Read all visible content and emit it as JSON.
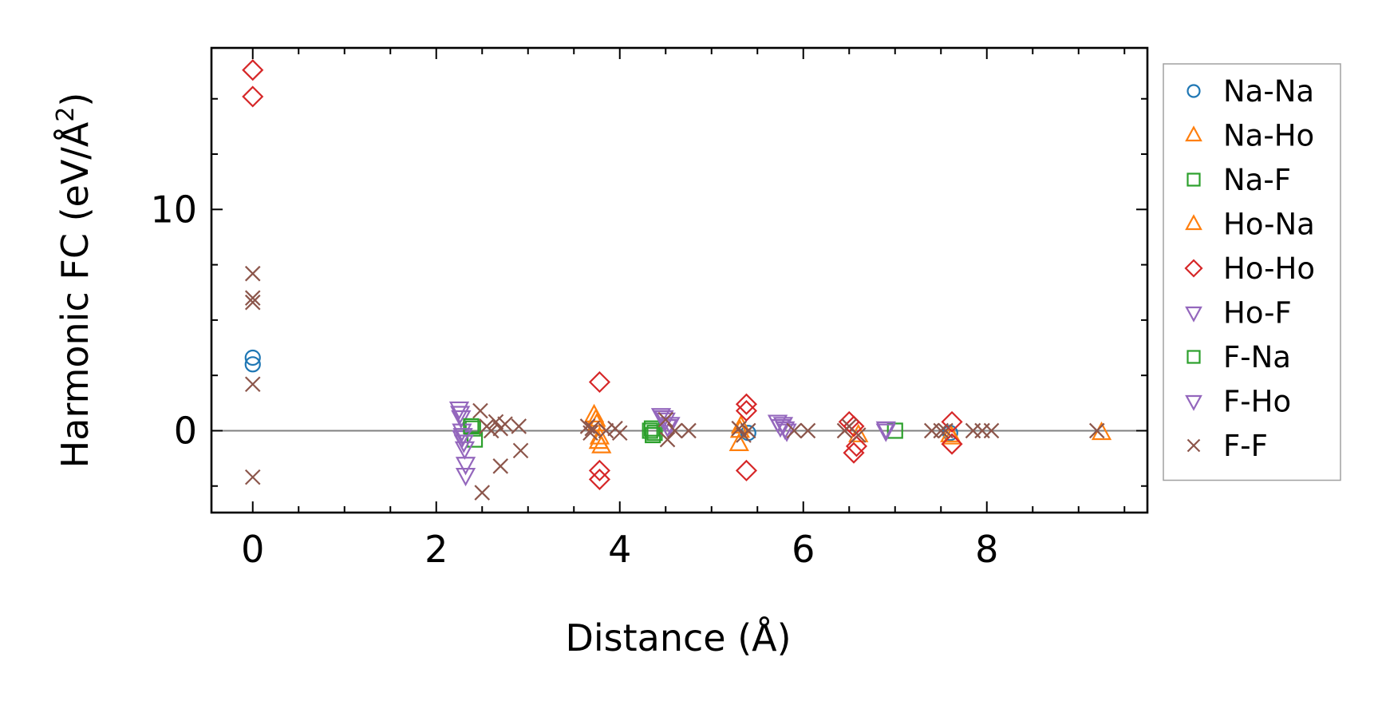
{
  "chart_data": {
    "type": "scatter",
    "xlabel": "Distance (Å)",
    "ylabel": "Harmonic FC (eV/Å",
    "ylabel_sup": "2",
    "ylabel_end": ")",
    "xlim": [
      -0.45,
      9.75
    ],
    "ylim": [
      -3.7,
      17.3
    ],
    "xticks": [
      0,
      2,
      4,
      6,
      8
    ],
    "yticks": [
      0,
      10
    ],
    "xtick_labels": [
      "0",
      "2",
      "4",
      "6",
      "8"
    ],
    "ytick_labels": [
      "0",
      "10"
    ],
    "zero_line": true,
    "grid": false,
    "legend_position": "outside right",
    "series": [
      {
        "name": "Na-Na",
        "marker": "circle",
        "color": "#1f77b4",
        "points": [
          [
            0,
            3.3
          ],
          [
            0,
            3.0
          ],
          [
            5.4,
            -0.1
          ],
          [
            7.6,
            -0.1
          ]
        ]
      },
      {
        "name": "Na-Ho",
        "marker": "triangle-up",
        "color": "#ff7f0e",
        "points": [
          [
            3.72,
            0.7
          ],
          [
            3.75,
            0.3
          ],
          [
            3.78,
            -0.3
          ],
          [
            3.8,
            -0.7
          ],
          [
            5.3,
            -0.6
          ],
          [
            5.32,
            0.2
          ],
          [
            6.6,
            -0.2
          ],
          [
            7.62,
            -0.3
          ],
          [
            9.25,
            -0.1
          ]
        ]
      },
      {
        "name": "Na-F",
        "marker": "square",
        "color": "#2ca02c",
        "points": [
          [
            2.4,
            0.1
          ],
          [
            2.42,
            -0.4
          ],
          [
            4.35,
            0.1
          ],
          [
            4.38,
            -0.1
          ],
          [
            7.0,
            0.0
          ]
        ]
      },
      {
        "name": "Ho-Na",
        "marker": "triangle-up",
        "color": "#ff7f0e",
        "points": [
          [
            3.74,
            0.5
          ],
          [
            3.77,
            -0.5
          ],
          [
            5.31,
            0.0
          ],
          [
            7.6,
            -0.2
          ]
        ]
      },
      {
        "name": "Ho-Ho",
        "marker": "diamond",
        "color": "#d62728",
        "points": [
          [
            0,
            16.3
          ],
          [
            0,
            15.1
          ],
          [
            3.78,
            2.2
          ],
          [
            3.78,
            -1.8
          ],
          [
            3.78,
            -2.2
          ],
          [
            5.38,
            1.2
          ],
          [
            5.38,
            0.9
          ],
          [
            5.38,
            -1.8
          ],
          [
            6.5,
            0.4
          ],
          [
            6.55,
            0.2
          ],
          [
            6.55,
            -1.0
          ],
          [
            6.58,
            -0.7
          ],
          [
            7.62,
            0.4
          ],
          [
            7.62,
            -0.6
          ]
        ]
      },
      {
        "name": "Ho-F",
        "marker": "triangle-down",
        "color": "#9467bd",
        "points": [
          [
            2.25,
            1.0
          ],
          [
            2.27,
            0.6
          ],
          [
            2.28,
            0.0
          ],
          [
            2.28,
            -0.3
          ],
          [
            2.3,
            -0.5
          ],
          [
            2.32,
            -1.5
          ],
          [
            2.32,
            -2.0
          ],
          [
            4.45,
            0.7
          ],
          [
            4.5,
            0.5
          ],
          [
            4.55,
            0.3
          ],
          [
            5.72,
            0.4
          ],
          [
            5.75,
            0.2
          ],
          [
            5.8,
            0.1
          ],
          [
            6.9,
            0.1
          ]
        ]
      },
      {
        "name": "F-Na",
        "marker": "square",
        "color": "#2ca02c",
        "points": [
          [
            2.38,
            0.2
          ],
          [
            4.33,
            0.0
          ],
          [
            4.36,
            -0.2
          ]
        ]
      },
      {
        "name": "F-Ho",
        "marker": "triangle-down",
        "color": "#9467bd",
        "points": [
          [
            2.26,
            0.8
          ],
          [
            2.29,
            -0.2
          ],
          [
            2.31,
            -0.8
          ],
          [
            4.48,
            0.6
          ],
          [
            4.52,
            0.2
          ],
          [
            5.78,
            0.3
          ],
          [
            5.82,
            0.0
          ],
          [
            6.9,
            0.0
          ]
        ]
      },
      {
        "name": "F-F",
        "marker": "x",
        "color": "#8c564b",
        "points": [
          [
            0,
            7.1
          ],
          [
            0,
            6.0
          ],
          [
            0,
            5.8
          ],
          [
            0,
            2.1
          ],
          [
            0,
            -2.1
          ],
          [
            2.48,
            0.9
          ],
          [
            2.5,
            -2.8
          ],
          [
            2.55,
            0.2
          ],
          [
            2.6,
            0.0
          ],
          [
            2.65,
            0.4
          ],
          [
            2.7,
            0.1
          ],
          [
            2.7,
            -1.6
          ],
          [
            2.75,
            0.3
          ],
          [
            2.9,
            0.2
          ],
          [
            2.92,
            -0.9
          ],
          [
            3.65,
            0.2
          ],
          [
            3.68,
            -0.1
          ],
          [
            3.7,
            0.1
          ],
          [
            3.85,
            0.0
          ],
          [
            3.95,
            0.1
          ],
          [
            4.0,
            -0.1
          ],
          [
            4.5,
            0.5
          ],
          [
            4.52,
            -0.4
          ],
          [
            4.6,
            0.0
          ],
          [
            4.75,
            0.0
          ],
          [
            5.3,
            0.1
          ],
          [
            5.35,
            -0.2
          ],
          [
            5.4,
            0.0
          ],
          [
            5.9,
            0.0
          ],
          [
            6.05,
            0.0
          ],
          [
            6.45,
            0.0
          ],
          [
            6.5,
            0.2
          ],
          [
            6.6,
            -0.2
          ],
          [
            7.4,
            0.0
          ],
          [
            7.5,
            0.0
          ],
          [
            7.55,
            0.0
          ],
          [
            7.85,
            0.0
          ],
          [
            7.95,
            0.0
          ],
          [
            8.05,
            0.0
          ],
          [
            9.2,
            0.0
          ]
        ]
      }
    ]
  }
}
